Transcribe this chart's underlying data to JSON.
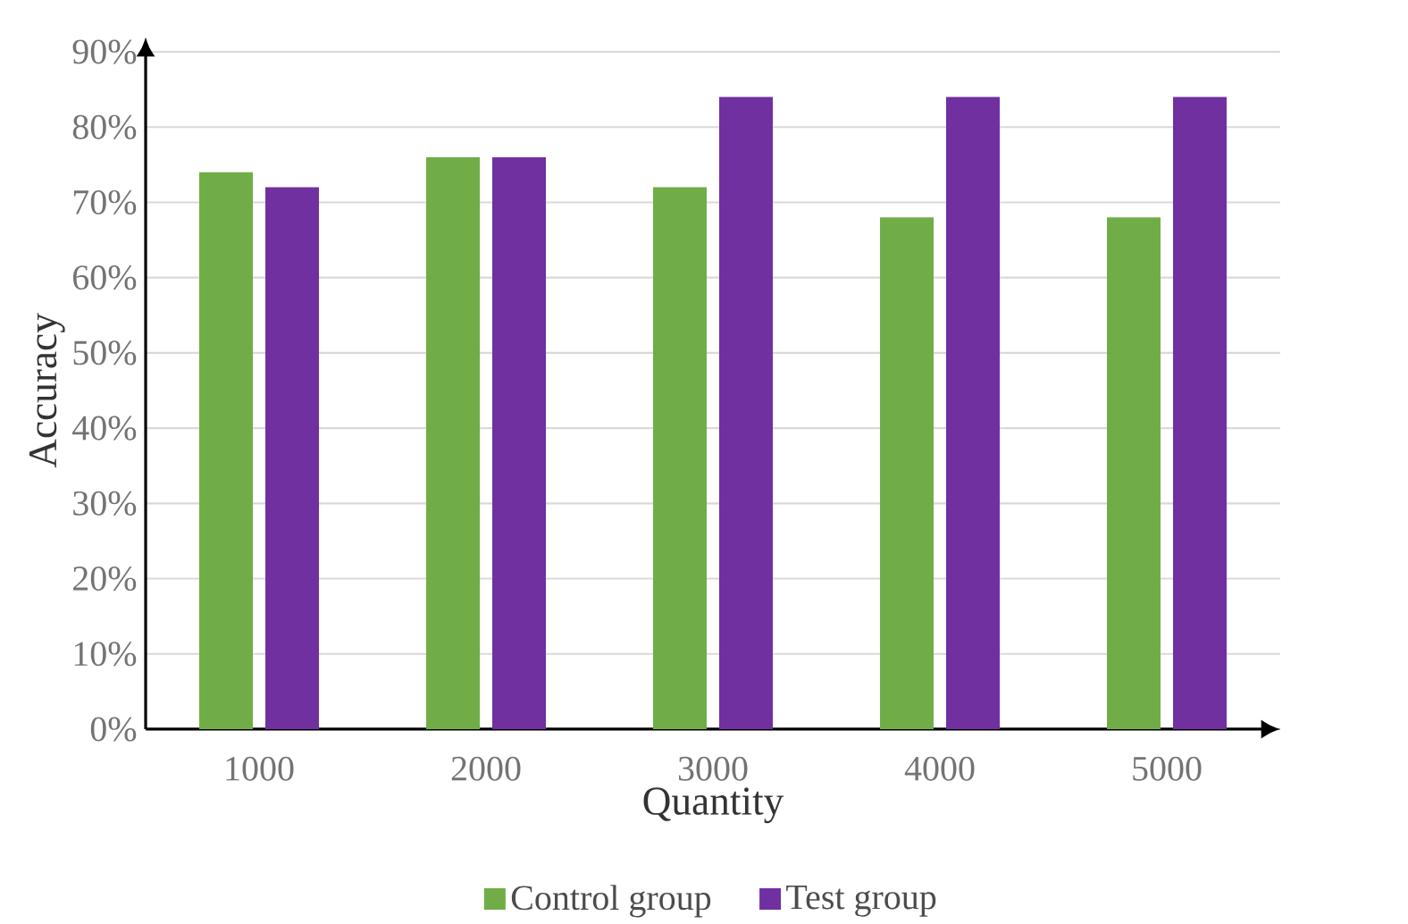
{
  "chart_data": {
    "type": "bar",
    "xlabel": "Quantity",
    "ylabel": "Accuracy",
    "categories": [
      "1000",
      "2000",
      "3000",
      "4000",
      "5000"
    ],
    "series": [
      {
        "name": "Control group",
        "color": "#70ad47",
        "values": [
          74,
          76,
          72,
          68,
          68
        ]
      },
      {
        "name": "Test group",
        "color": "#7030a0",
        "values": [
          72,
          76,
          84,
          84,
          84
        ]
      }
    ],
    "ylim": [
      0,
      90
    ],
    "yticks": [
      {
        "value": 0,
        "label": "0%"
      },
      {
        "value": 10,
        "label": "10%"
      },
      {
        "value": 20,
        "label": "20%"
      },
      {
        "value": 30,
        "label": "30%"
      },
      {
        "value": 40,
        "label": "40%"
      },
      {
        "value": 50,
        "label": "50%"
      },
      {
        "value": 60,
        "label": "60%"
      },
      {
        "value": 70,
        "label": "70%"
      },
      {
        "value": 80,
        "label": "80%"
      },
      {
        "value": 90,
        "label": "90%"
      }
    ],
    "grid": "y",
    "legend": "bottom"
  }
}
